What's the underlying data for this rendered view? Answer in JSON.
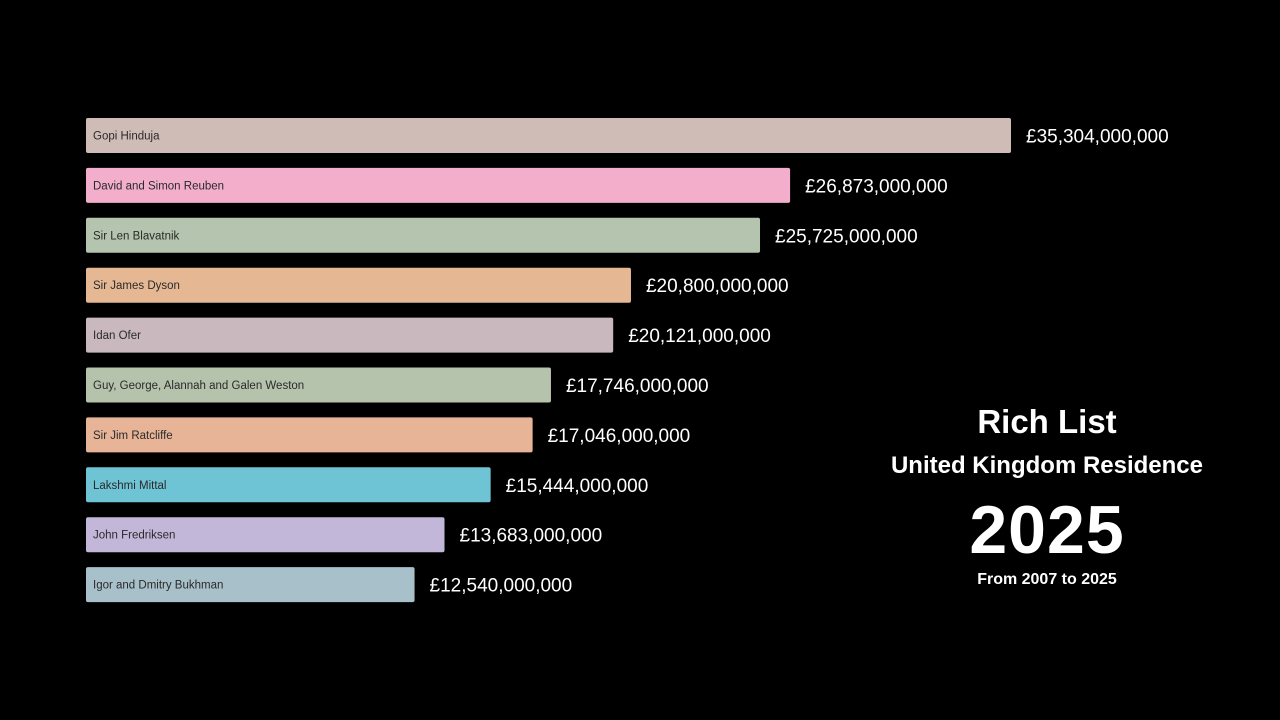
{
  "chart_data": {
    "type": "bar",
    "orientation": "horizontal",
    "categories": [
      "Gopi Hinduja",
      "David and Simon Reuben",
      "Sir Len Blavatnik",
      "Sir James Dyson",
      "Idan Ofer",
      "Guy, George, Alannah and Galen Weston",
      "Sir Jim Ratcliffe",
      "Lakshmi Mittal",
      "John Fredriksen",
      "Igor and Dmitry Bukhman"
    ],
    "values": [
      35304000000,
      26873000000,
      25725000000,
      20800000000,
      20121000000,
      17746000000,
      17046000000,
      15444000000,
      13683000000,
      12540000000
    ],
    "value_labels": [
      "£35,304,000,000",
      "£26,873,000,000",
      "£25,725,000,000",
      "£20,800,000,000",
      "£20,121,000,000",
      "£17,746,000,000",
      "£17,046,000,000",
      "£15,444,000,000",
      "£13,683,000,000",
      "£12,540,000,000"
    ],
    "colors": [
      "#cfbcb7",
      "#f2aecb",
      "#b4c4ae",
      "#e5b893",
      "#c9b8bd",
      "#b5c3ad",
      "#e8b498",
      "#6ec4d4",
      "#c2b7d8",
      "#a8c0c9"
    ],
    "xlim": [
      0,
      35304000000
    ],
    "title": "Rich List",
    "subtitle": "United Kingdom Residence",
    "year": "2025",
    "range_text": "From 2007 to 2025",
    "grid": false,
    "legend": "none"
  }
}
